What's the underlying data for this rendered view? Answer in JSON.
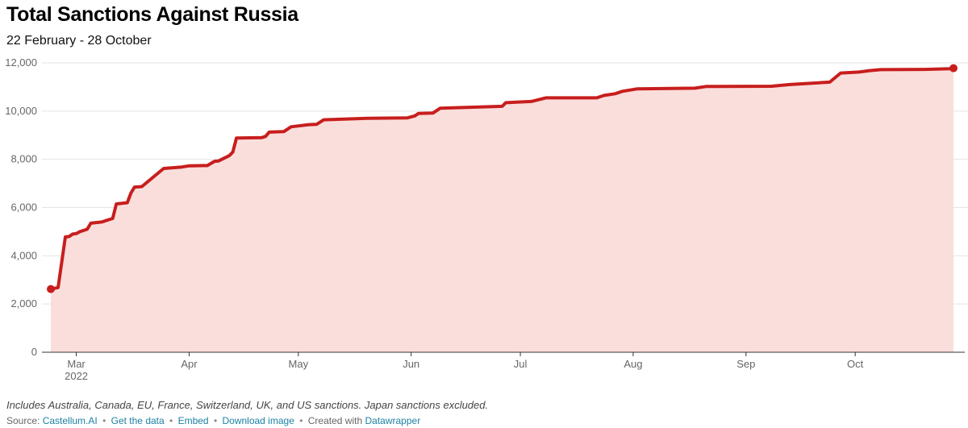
{
  "header": {
    "title": "Total Sanctions Against Russia",
    "subtitle": "22 February - 28 October"
  },
  "notes": "Includes Australia, Canada, EU, France, Switzerland, UK, and US sanctions. Japan sanctions excluded.",
  "footer": {
    "source_label": "Source:",
    "source_link": "Castellum.AI",
    "get_data": "Get the data",
    "embed": "Embed",
    "download": "Download image",
    "created_with": "Created with",
    "datawrapper": "Datawrapper",
    "separator": "•"
  },
  "colors": {
    "line": "#c71e1d",
    "area": "#fadedc",
    "grid": "#e5e5e5",
    "axis": "#333333",
    "link": "#1d81a2"
  },
  "chart_data": {
    "type": "area",
    "title": "Total Sanctions Against Russia",
    "subtitle": "22 February - 28 October",
    "x_unit": "date",
    "ylim": [
      0,
      12000
    ],
    "yticks": [
      0,
      2000,
      4000,
      6000,
      8000,
      10000,
      12000
    ],
    "ytick_labels": [
      "0",
      "2,000",
      "4,000",
      "6,000",
      "8,000",
      "10,000",
      "12,000"
    ],
    "xticks": [
      {
        "date": "2022-03-01",
        "label": "Mar",
        "sublabel": "2022"
      },
      {
        "date": "2022-04-01",
        "label": "Apr"
      },
      {
        "date": "2022-05-01",
        "label": "May"
      },
      {
        "date": "2022-06-01",
        "label": "Jun"
      },
      {
        "date": "2022-07-01",
        "label": "Jul"
      },
      {
        "date": "2022-08-01",
        "label": "Aug"
      },
      {
        "date": "2022-09-01",
        "label": "Sep"
      },
      {
        "date": "2022-10-01",
        "label": "Oct"
      }
    ],
    "grid": true,
    "endpoint_markers": true,
    "series": [
      {
        "points": [
          [
            "2022-02-22",
            2620
          ],
          [
            "2022-02-24",
            2680
          ],
          [
            "2022-02-26",
            4780
          ],
          [
            "2022-02-27",
            4800
          ],
          [
            "2022-02-28",
            4900
          ],
          [
            "2022-03-01",
            4920
          ],
          [
            "2022-03-02",
            5000
          ],
          [
            "2022-03-04",
            5100
          ],
          [
            "2022-03-05",
            5350
          ],
          [
            "2022-03-08",
            5400
          ],
          [
            "2022-03-11",
            5550
          ],
          [
            "2022-03-12",
            6150
          ],
          [
            "2022-03-15",
            6200
          ],
          [
            "2022-03-16",
            6600
          ],
          [
            "2022-03-17",
            6850
          ],
          [
            "2022-03-19",
            6870
          ],
          [
            "2022-03-25",
            7620
          ],
          [
            "2022-03-30",
            7680
          ],
          [
            "2022-04-01",
            7730
          ],
          [
            "2022-04-06",
            7740
          ],
          [
            "2022-04-08",
            7920
          ],
          [
            "2022-04-09",
            7930
          ],
          [
            "2022-04-12",
            8150
          ],
          [
            "2022-04-13",
            8300
          ],
          [
            "2022-04-14",
            8880
          ],
          [
            "2022-04-21",
            8900
          ],
          [
            "2022-04-22",
            8950
          ],
          [
            "2022-04-23",
            9130
          ],
          [
            "2022-04-27",
            9150
          ],
          [
            "2022-04-29",
            9350
          ],
          [
            "2022-05-04",
            9440
          ],
          [
            "2022-05-06",
            9450
          ],
          [
            "2022-05-08",
            9640
          ],
          [
            "2022-05-20",
            9700
          ],
          [
            "2022-05-31",
            9720
          ],
          [
            "2022-06-02",
            9800
          ],
          [
            "2022-06-03",
            9900
          ],
          [
            "2022-06-07",
            9920
          ],
          [
            "2022-06-09",
            10120
          ],
          [
            "2022-06-26",
            10200
          ],
          [
            "2022-06-27",
            10350
          ],
          [
            "2022-07-01",
            10380
          ],
          [
            "2022-07-04",
            10400
          ],
          [
            "2022-07-08",
            10550
          ],
          [
            "2022-07-22",
            10550
          ],
          [
            "2022-07-24",
            10650
          ],
          [
            "2022-07-27",
            10720
          ],
          [
            "2022-07-29",
            10820
          ],
          [
            "2022-08-02",
            10920
          ],
          [
            "2022-08-18",
            10950
          ],
          [
            "2022-08-21",
            11020
          ],
          [
            "2022-09-08",
            11030
          ],
          [
            "2022-09-13",
            11100
          ],
          [
            "2022-09-24",
            11200
          ],
          [
            "2022-09-27",
            11580
          ],
          [
            "2022-10-02",
            11620
          ],
          [
            "2022-10-05",
            11680
          ],
          [
            "2022-10-08",
            11720
          ],
          [
            "2022-10-20",
            11730
          ],
          [
            "2022-10-27",
            11760
          ],
          [
            "2022-10-28",
            11780
          ]
        ]
      }
    ]
  }
}
